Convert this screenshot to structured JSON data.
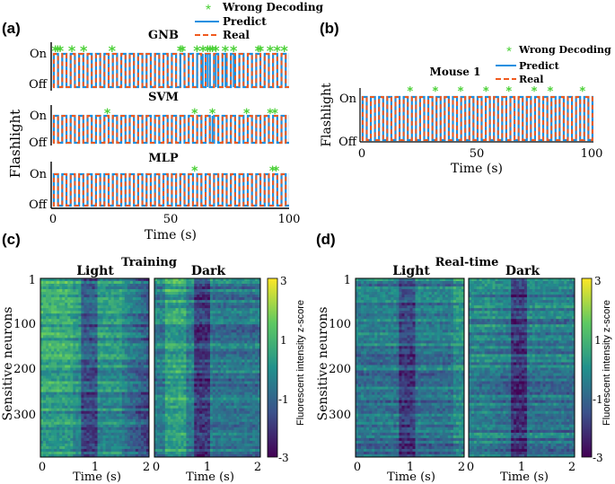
{
  "colors": {
    "predict": "#1a8fe0",
    "real": "#f05a1e",
    "wrong": "#4cd138",
    "axis": "#000000"
  },
  "chart_data": [
    {
      "panel_label": "(a)",
      "type": "line",
      "legend": {
        "wrong": "Wrong Decoding",
        "predict": "Predict",
        "real": "Real",
        "position": "top-right"
      },
      "xlabel": "Time (s)",
      "ylabel": "Flashlight",
      "xlim": [
        0,
        100
      ],
      "xticks": [
        0,
        50,
        100
      ],
      "ytick_labels": [
        "On",
        "Off"
      ],
      "subplots": [
        {
          "title": "GNB",
          "wrong_decoding_times": [
            1,
            2,
            3,
            8,
            13,
            25,
            54,
            54.8,
            61,
            63.5,
            65.5,
            66.5,
            67.5,
            69,
            73,
            76.5,
            87,
            87.8,
            92,
            95,
            98
          ]
        },
        {
          "title": "SVM",
          "wrong_decoding_times": [
            23,
            60,
            67.5,
            82,
            92,
            94
          ]
        },
        {
          "title": "MLP",
          "wrong_decoding_times": [
            60,
            93,
            94.5
          ]
        }
      ],
      "cycles": 28
    },
    {
      "panel_label": "(b)",
      "type": "line",
      "title": "Mouse 1",
      "legend": {
        "wrong": "Wrong Decoding",
        "predict": "Predict",
        "real": "Real",
        "position": "top-right"
      },
      "xlabel": "Time (s)",
      "ylabel": "Flashlight",
      "xlim": [
        0,
        100
      ],
      "xticks": [
        0,
        50,
        100
      ],
      "ytick_labels": [
        "On",
        "Off"
      ],
      "wrong_decoding_times": [
        21,
        32,
        43,
        54,
        64,
        75,
        82,
        96
      ],
      "cycles": 28
    },
    {
      "panel_label": "(c)",
      "type": "heatmap",
      "title": "Training",
      "sub_titles": [
        "Light",
        "Dark"
      ],
      "xlabel": "Time (s)",
      "ylabel": "Sensitive neurons",
      "xlim": [
        0,
        2
      ],
      "xticks": [
        0,
        1,
        2
      ],
      "yticks": [
        1,
        100,
        200,
        300
      ],
      "n_neurons": 390,
      "colorbar": {
        "label": "Fluorescent intensity z-score",
        "ticks": [
          3,
          1,
          -1,
          -3
        ],
        "range": [
          -3,
          3
        ]
      }
    },
    {
      "panel_label": "(d)",
      "type": "heatmap",
      "title": "Real-time",
      "sub_titles": [
        "Light",
        "Dark"
      ],
      "xlabel": "Time (s)",
      "ylabel": "Sensitive neurons",
      "xlim": [
        0,
        2
      ],
      "xticks": [
        0,
        1,
        2
      ],
      "yticks": [
        1,
        100,
        200,
        300
      ],
      "n_neurons": 390,
      "colorbar": {
        "label": "Fluorescent intensity z-score",
        "ticks": [
          3,
          1,
          -1,
          -3
        ],
        "range": [
          -3,
          3
        ]
      }
    }
  ]
}
